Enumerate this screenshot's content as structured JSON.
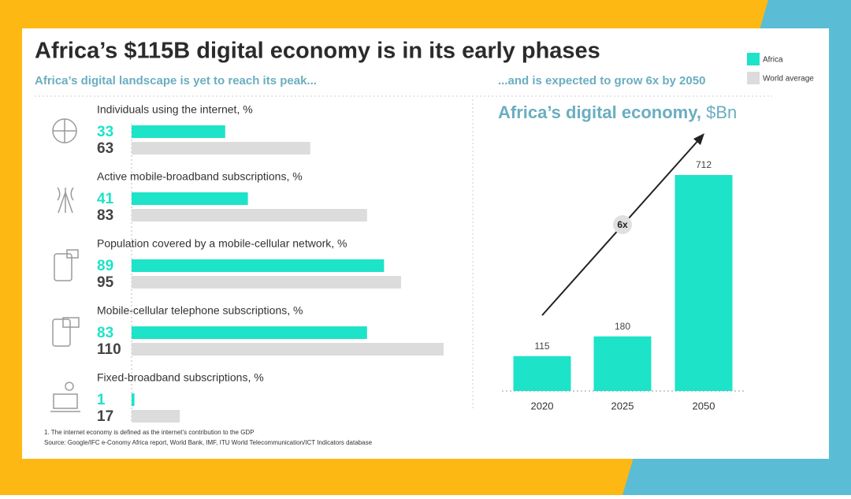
{
  "title": "Africa’s $115B digital economy is in its early phases",
  "footnote": "1.  The internet economy is defined as the internet’s contribution to the GDP",
  "source": "Source: Google/IFC e-Conomy Africa report, World Bank, IMF, ITU World Telecommunication/ICT Indicators database",
  "chart_data": [
    {
      "type": "hbar-pairs",
      "subtitle": "Africa’s digital landscape is yet to reach its peak...",
      "categories": [
        "Individuals using the internet, %",
        "Active mobile-broadband subscriptions, %",
        "Population covered by a mobile-cellular network, %",
        "Mobile-cellular telephone subscriptions, %",
        "Fixed-broadband subscriptions, %"
      ],
      "series": [
        {
          "name": "Africa",
          "color": "#1de3c8",
          "values": [
            33,
            41,
            89,
            83,
            1
          ]
        },
        {
          "name": "World average",
          "color": "#dcdcdc",
          "values": [
            63,
            83,
            95,
            110,
            17
          ]
        }
      ],
      "xlim": [
        0,
        110
      ]
    },
    {
      "type": "bar",
      "subtitle": "...and is expected to grow 6x by 2050",
      "title": "Africa’s digital economy,",
      "title_unit": "$Bn",
      "categories": [
        "2020",
        "2025",
        "2050"
      ],
      "values": [
        115,
        180,
        712
      ],
      "color": "#1de3c8",
      "ylim": [
        0,
        712
      ],
      "annotation": "6x"
    }
  ]
}
